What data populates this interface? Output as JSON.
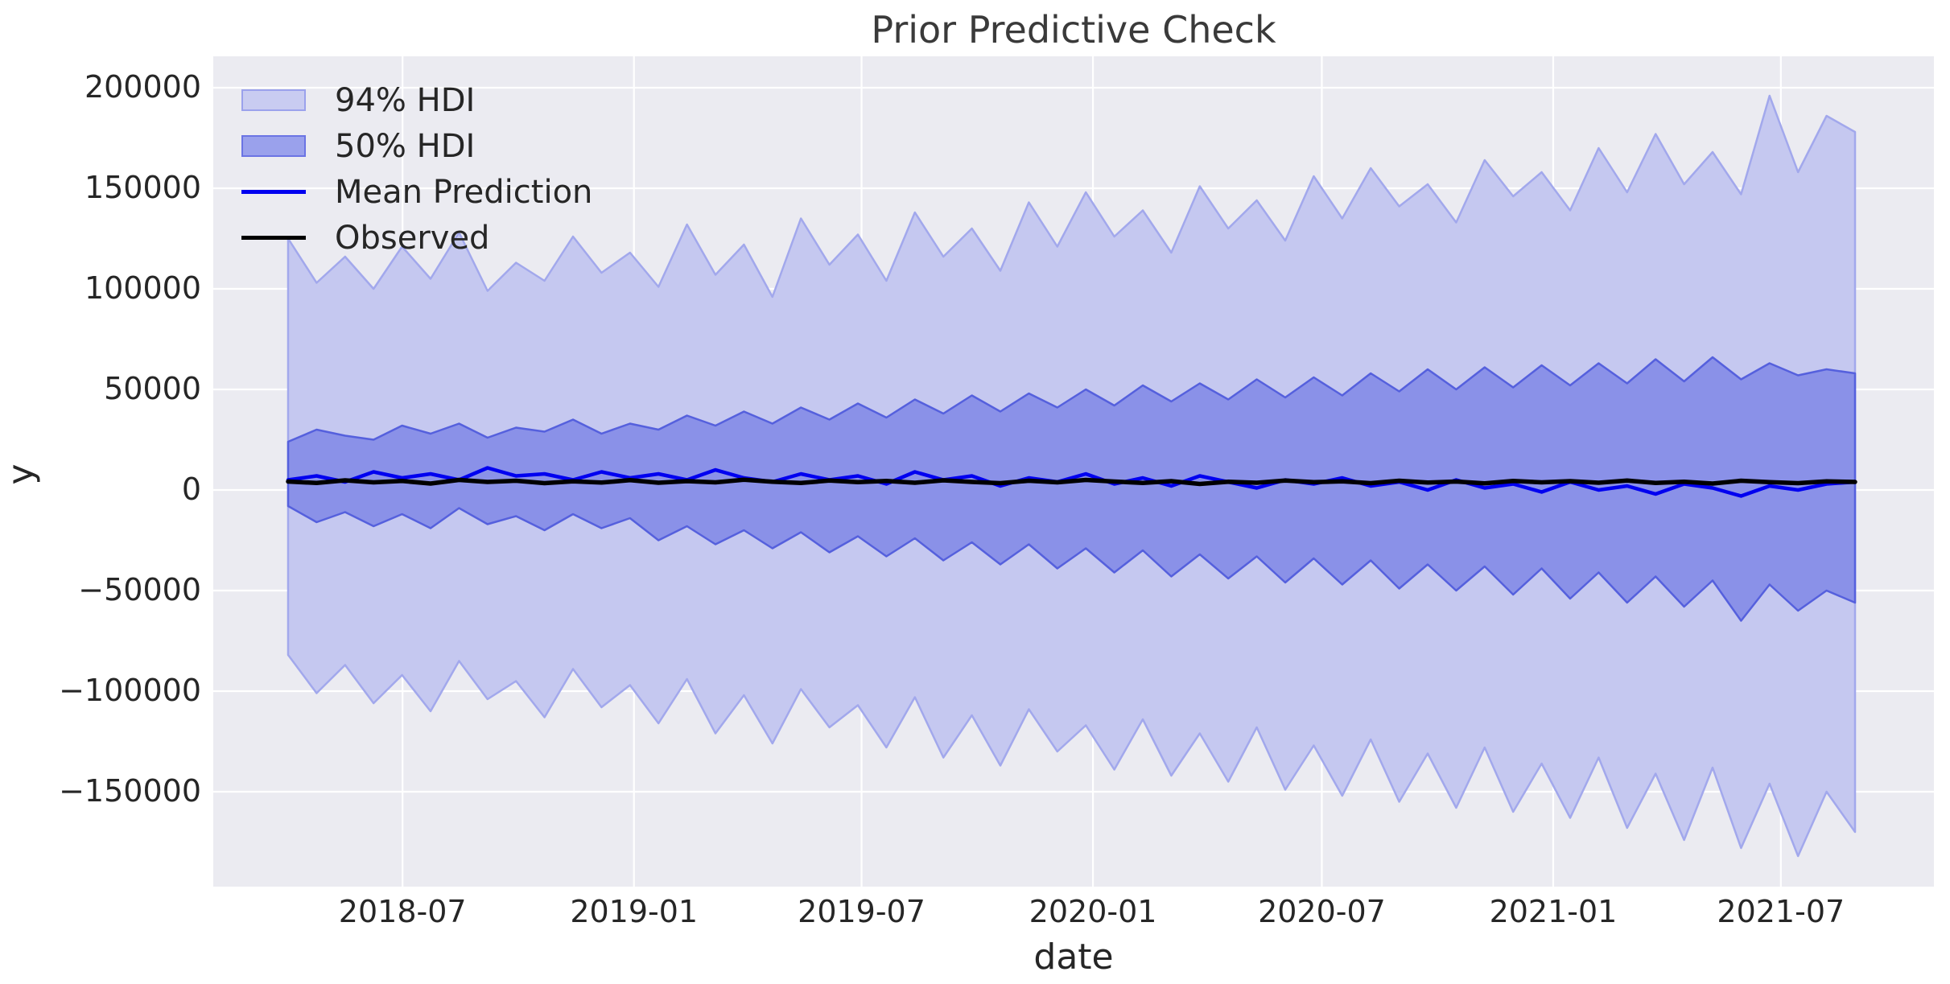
{
  "window": {
    "title": "Prior Predictive Check"
  },
  "colors": {
    "figure_background": "#ffffff",
    "axes_background": "#ebebf1",
    "grid": "#ffffff",
    "text": "#262626",
    "hdi94_fill": "#c5c8f0",
    "hdi94_edge": "#a2a8ec",
    "hdi50_fill": "#8a91e8",
    "hdi50_edge": "#5560dd",
    "mean_line": "#0000f0",
    "observed_line": "#000000"
  },
  "legend": {
    "items": [
      {
        "label": "94% HDI",
        "type": "patch",
        "fill": "#c9ccf1",
        "edge": "#9ba2ec"
      },
      {
        "label": "50% HDI",
        "type": "patch",
        "fill": "#9aa1ec",
        "edge": "#6b74e4"
      },
      {
        "label": "Mean Prediction",
        "type": "line",
        "color": "#0000f0"
      },
      {
        "label": "Observed",
        "type": "line",
        "color": "#000000"
      }
    ]
  },
  "chart_data": {
    "type": "area",
    "title": "Prior Predictive Check",
    "xlabel": "date",
    "ylabel": "y",
    "grid": true,
    "legend_position": "upper-left",
    "x_domain": [
      "2018-04-01",
      "2021-08-29"
    ],
    "n_points": 56,
    "x_tick_dates": [
      "2018-07-01",
      "2019-01-01",
      "2019-07-01",
      "2020-01-01",
      "2020-07-01",
      "2021-01-01",
      "2021-07-01"
    ],
    "x_tick_labels": [
      "2018-07",
      "2019-01",
      "2019-07",
      "2020-01",
      "2020-07",
      "2021-01",
      "2021-07"
    ],
    "yticks": [
      -150000,
      -100000,
      -50000,
      0,
      50000,
      100000,
      150000,
      200000
    ],
    "ylim": [
      -197200,
      215600
    ],
    "bands": [
      {
        "name": "94% HDI",
        "fill": "#c5c8f0",
        "edge": "#a2a8ec",
        "upper": [
          125000,
          103000,
          116000,
          100000,
          121000,
          105000,
          128000,
          99000,
          113000,
          104000,
          126000,
          108000,
          118000,
          101000,
          132000,
          107000,
          122000,
          96000,
          135000,
          112000,
          127000,
          104000,
          138000,
          116000,
          130000,
          109000,
          143000,
          121000,
          148000,
          126000,
          139000,
          118000,
          151000,
          130000,
          144000,
          124000,
          156000,
          135000,
          160000,
          141000,
          152000,
          133000,
          164000,
          146000,
          158000,
          139000,
          170000,
          148000,
          177000,
          152000,
          168000,
          147000,
          196000,
          158000,
          186000,
          178000
        ],
        "lower": [
          -82000,
          -101000,
          -87000,
          -106000,
          -92000,
          -110000,
          -85000,
          -104000,
          -95000,
          -113000,
          -89000,
          -108000,
          -97000,
          -116000,
          -94000,
          -121000,
          -102000,
          -126000,
          -99000,
          -118000,
          -107000,
          -128000,
          -103000,
          -133000,
          -112000,
          -137000,
          -109000,
          -130000,
          -117000,
          -139000,
          -114000,
          -142000,
          -121000,
          -145000,
          -118000,
          -149000,
          -127000,
          -152000,
          -124000,
          -155000,
          -131000,
          -158000,
          -128000,
          -160000,
          -136000,
          -163000,
          -133000,
          -168000,
          -141000,
          -174000,
          -138000,
          -178000,
          -146000,
          -182000,
          -150000,
          -170000
        ]
      },
      {
        "name": "50% HDI",
        "fill": "#8a91e8",
        "edge": "#5560dd",
        "upper": [
          24000,
          30000,
          27000,
          25000,
          32000,
          28000,
          33000,
          26000,
          31000,
          29000,
          35000,
          28000,
          33000,
          30000,
          37000,
          32000,
          39000,
          33000,
          41000,
          35000,
          43000,
          36000,
          45000,
          38000,
          47000,
          39000,
          48000,
          41000,
          50000,
          42000,
          52000,
          44000,
          53000,
          45000,
          55000,
          46000,
          56000,
          47000,
          58000,
          49000,
          60000,
          50000,
          61000,
          51000,
          62000,
          52000,
          63000,
          53000,
          65000,
          54000,
          66000,
          55000,
          63000,
          57000,
          60000,
          58000
        ],
        "lower": [
          -8000,
          -16000,
          -11000,
          -18000,
          -12000,
          -19000,
          -9000,
          -17000,
          -13000,
          -20000,
          -12000,
          -19000,
          -14000,
          -25000,
          -18000,
          -27000,
          -20000,
          -29000,
          -21000,
          -31000,
          -23000,
          -33000,
          -24000,
          -35000,
          -26000,
          -37000,
          -27000,
          -39000,
          -29000,
          -41000,
          -30000,
          -43000,
          -32000,
          -44000,
          -33000,
          -46000,
          -34000,
          -47000,
          -35000,
          -49000,
          -37000,
          -50000,
          -38000,
          -52000,
          -39000,
          -54000,
          -41000,
          -56000,
          -43000,
          -58000,
          -45000,
          -65000,
          -47000,
          -60000,
          -50000,
          -56000
        ]
      }
    ],
    "lines": [
      {
        "name": "Mean Prediction",
        "color": "#0000f0",
        "values": [
          5000,
          7000,
          4000,
          9000,
          6000,
          8000,
          5000,
          11000,
          7000,
          8000,
          5000,
          9000,
          6000,
          8000,
          5000,
          10000,
          6000,
          4000,
          8000,
          5000,
          7000,
          3000,
          9000,
          5000,
          7000,
          2000,
          6000,
          4000,
          8000,
          3000,
          6000,
          2000,
          7000,
          4000,
          1000,
          5000,
          3000,
          6000,
          2000,
          4000,
          0,
          5000,
          1000,
          3000,
          -1000,
          4000,
          0,
          2000,
          -2000,
          3000,
          1000,
          -3000,
          2000,
          0,
          3000,
          4000
        ]
      },
      {
        "name": "Observed",
        "color": "#000000",
        "values": [
          4200,
          3500,
          4800,
          3800,
          4500,
          3200,
          5000,
          4000,
          4600,
          3400,
          4300,
          3700,
          4900,
          3600,
          4400,
          3800,
          5100,
          4100,
          3500,
          4700,
          3900,
          4500,
          3600,
          4800,
          4000,
          3400,
          4600,
          3800,
          5000,
          4200,
          3500,
          4400,
          3000,
          4100,
          3600,
          4700,
          3900,
          4300,
          3400,
          4600,
          3700,
          4200,
          3300,
          4500,
          3800,
          4400,
          3600,
          4700,
          3500,
          4100,
          3200,
          4600,
          3900,
          3400,
          4300,
          4000
        ]
      }
    ]
  }
}
